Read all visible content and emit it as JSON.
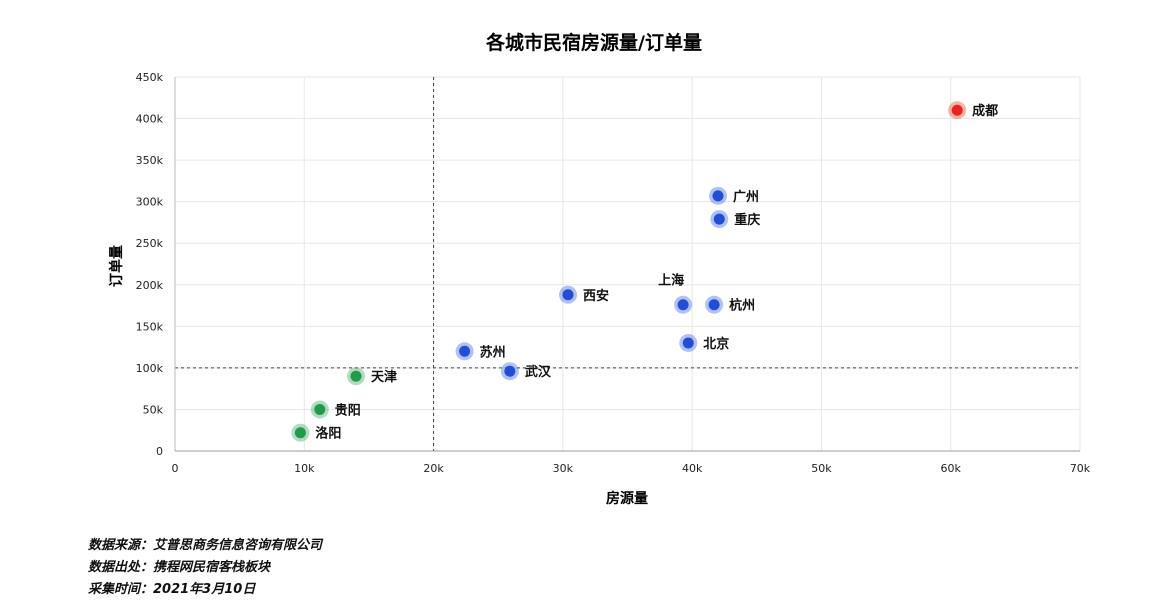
{
  "chart_data": {
    "type": "scatter",
    "title": "各城市民宿房源量/订单量",
    "xlabel": "房源量",
    "ylabel": "订单量",
    "xlim": [
      0,
      70000
    ],
    "ylim": [
      0,
      450000
    ],
    "x_ticks": [
      0,
      10000,
      20000,
      30000,
      40000,
      50000,
      60000,
      70000
    ],
    "x_tick_labels": [
      "0",
      "10k",
      "20k",
      "30k",
      "40k",
      "50k",
      "60k",
      "70k"
    ],
    "y_ticks": [
      0,
      50000,
      100000,
      150000,
      200000,
      250000,
      300000,
      350000,
      400000,
      450000
    ],
    "y_tick_labels": [
      "0",
      "50k",
      "100k",
      "150k",
      "200k",
      "250k",
      "300k",
      "350k",
      "400k",
      "450k"
    ],
    "grid": true,
    "reference_lines": {
      "x": 20000,
      "y": 100000
    },
    "colors": {
      "red": "#e8251b",
      "blue": "#1f4ed8",
      "green": "#1f9b4a"
    },
    "points": [
      {
        "name": "成都",
        "x": 60500,
        "y": 410000,
        "color": "red"
      },
      {
        "name": "广州",
        "x": 42000,
        "y": 307000,
        "color": "blue"
      },
      {
        "name": "重庆",
        "x": 42100,
        "y": 279000,
        "color": "blue"
      },
      {
        "name": "上海",
        "x": 39300,
        "y": 176000,
        "color": "blue"
      },
      {
        "name": "杭州",
        "x": 41700,
        "y": 176000,
        "color": "blue"
      },
      {
        "name": "西安",
        "x": 30400,
        "y": 188000,
        "color": "blue"
      },
      {
        "name": "北京",
        "x": 39700,
        "y": 130000,
        "color": "blue"
      },
      {
        "name": "苏州",
        "x": 22400,
        "y": 120000,
        "color": "blue"
      },
      {
        "name": "武汉",
        "x": 25900,
        "y": 96000,
        "color": "blue"
      },
      {
        "name": "天津",
        "x": 14000,
        "y": 90000,
        "color": "green"
      },
      {
        "name": "贵阳",
        "x": 11200,
        "y": 50000,
        "color": "green"
      },
      {
        "name": "洛阳",
        "x": 9700,
        "y": 22000,
        "color": "green"
      }
    ]
  },
  "footer": {
    "line1": "数据来源：艾普思商务信息咨询有限公司",
    "line2": "数据出处：携程网民宿客栈板块",
    "line3": "采集时间：2021年3月10日"
  }
}
